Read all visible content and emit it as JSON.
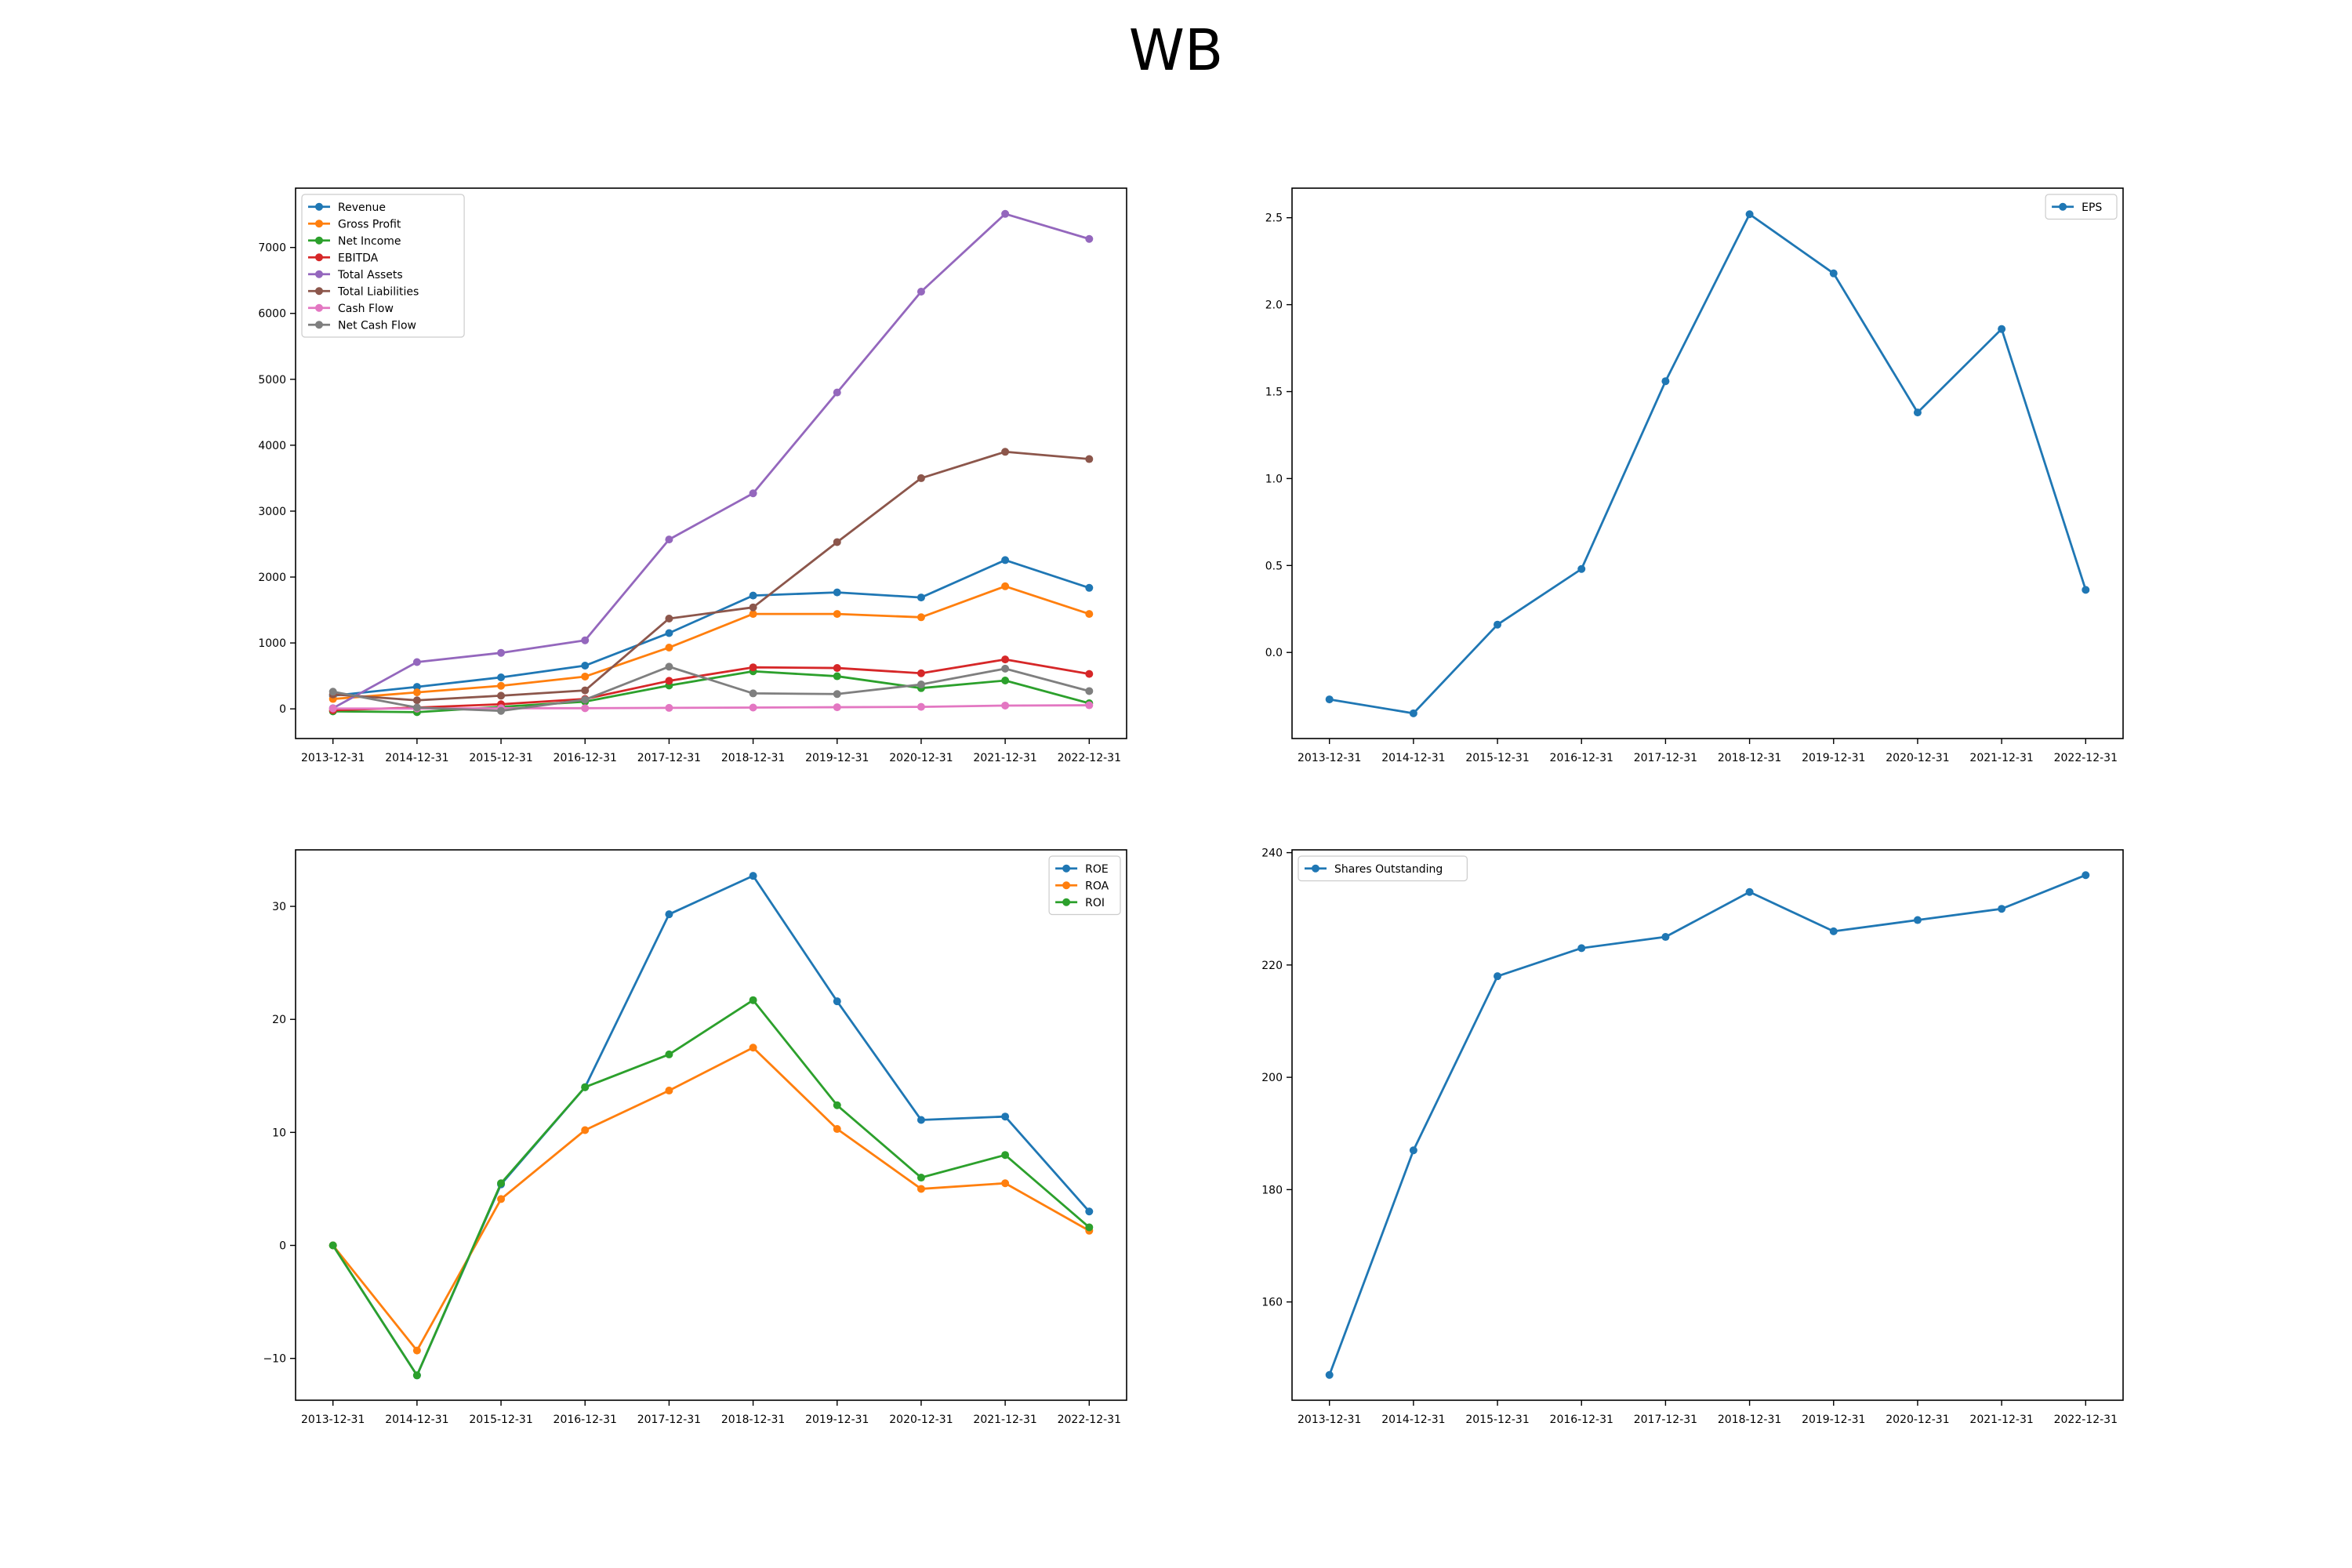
{
  "figure_title": "WB",
  "colors": {
    "blue": "#1f77b4",
    "orange": "#ff7f0e",
    "green": "#2ca02c",
    "red": "#d62728",
    "purple": "#9467bd",
    "brown": "#8c564b",
    "pink": "#e377c2",
    "gray": "#7f7f7f"
  },
  "chart_data": [
    {
      "type": "line",
      "x": [
        "2013-12-31",
        "2014-12-31",
        "2015-12-31",
        "2016-12-31",
        "2017-12-31",
        "2018-12-31",
        "2019-12-31",
        "2020-12-31",
        "2021-12-31",
        "2022-12-31"
      ],
      "ylim": [
        -450,
        7900
      ],
      "yticks": [
        0,
        1000,
        2000,
        3000,
        4000,
        5000,
        6000,
        7000
      ],
      "legend": "top-left",
      "grid": false,
      "series": [
        {
          "name": "Revenue",
          "color": "#1f77b4",
          "values": [
            200,
            334,
            478,
            656,
            1150,
            1719,
            1767,
            1690,
            2257,
            1836
          ]
        },
        {
          "name": "Gross Profit",
          "color": "#ff7f0e",
          "values": [
            150,
            250,
            350,
            490,
            930,
            1440,
            1440,
            1390,
            1860,
            1440
          ]
        },
        {
          "name": "Net Income",
          "color": "#2ca02c",
          "values": [
            -38,
            -50,
            30,
            110,
            355,
            570,
            495,
            315,
            430,
            85
          ]
        },
        {
          "name": "EBITDA",
          "color": "#d62728",
          "values": [
            -20,
            20,
            70,
            150,
            425,
            630,
            620,
            540,
            750,
            530
          ]
        },
        {
          "name": "Total Assets",
          "color": "#9467bd",
          "values": [
            10,
            710,
            850,
            1040,
            2570,
            3270,
            4800,
            6330,
            7510,
            7130
          ]
        },
        {
          "name": "Total Liabilities",
          "color": "#8c564b",
          "values": [
            220,
            130,
            200,
            280,
            1370,
            1540,
            2530,
            3500,
            3900,
            3790
          ]
        },
        {
          "name": "Cash Flow",
          "color": "#e377c2",
          "values": [
            5,
            5,
            10,
            10,
            15,
            20,
            25,
            30,
            50,
            55
          ]
        },
        {
          "name": "Net Cash Flow",
          "color": "#7f7f7f",
          "values": [
            260,
            20,
            -30,
            140,
            640,
            235,
            225,
            370,
            610,
            270
          ]
        }
      ]
    },
    {
      "type": "line",
      "x": [
        "2013-12-31",
        "2014-12-31",
        "2015-12-31",
        "2016-12-31",
        "2017-12-31",
        "2018-12-31",
        "2019-12-31",
        "2020-12-31",
        "2021-12-31",
        "2022-12-31"
      ],
      "ylim": [
        -0.495,
        2.67
      ],
      "yticks": [
        0.0,
        0.5,
        1.0,
        1.5,
        2.0,
        2.5
      ],
      "ytick_labels": [
        "0.0",
        "0.5",
        "1.0",
        "1.5",
        "2.0",
        "2.5"
      ],
      "legend": "top-right",
      "grid": false,
      "series": [
        {
          "name": "EPS",
          "color": "#1f77b4",
          "values": [
            -0.27,
            -0.35,
            0.16,
            0.48,
            1.56,
            2.52,
            2.18,
            1.38,
            1.86,
            0.36
          ]
        }
      ]
    },
    {
      "type": "line",
      "x": [
        "2013-12-31",
        "2014-12-31",
        "2015-12-31",
        "2016-12-31",
        "2017-12-31",
        "2018-12-31",
        "2019-12-31",
        "2020-12-31",
        "2021-12-31",
        "2022-12-31"
      ],
      "ylim": [
        -13.7,
        35
      ],
      "yticks": [
        -10,
        0,
        10,
        20,
        30
      ],
      "legend": "top-right",
      "grid": false,
      "series": [
        {
          "name": "ROE",
          "color": "#1f77b4",
          "values": [
            0,
            -11.5,
            5.4,
            14.0,
            29.3,
            32.7,
            21.6,
            11.1,
            11.4,
            3.0
          ]
        },
        {
          "name": "ROA",
          "color": "#ff7f0e",
          "values": [
            0,
            -9.3,
            4.1,
            10.2,
            13.7,
            17.5,
            10.3,
            5.0,
            5.5,
            1.3
          ]
        },
        {
          "name": "ROI",
          "color": "#2ca02c",
          "values": [
            0,
            -11.5,
            5.5,
            14.0,
            16.9,
            21.7,
            12.4,
            6.0,
            8.0,
            1.6
          ]
        }
      ]
    },
    {
      "type": "line",
      "x": [
        "2013-12-31",
        "2014-12-31",
        "2015-12-31",
        "2016-12-31",
        "2017-12-31",
        "2018-12-31",
        "2019-12-31",
        "2020-12-31",
        "2021-12-31",
        "2022-12-31"
      ],
      "ylim": [
        142.5,
        240.5
      ],
      "yticks": [
        160,
        180,
        200,
        220,
        240
      ],
      "legend": "top-left",
      "grid": false,
      "series": [
        {
          "name": "Shares Outstanding",
          "color": "#1f77b4",
          "values": [
            147,
            187,
            218,
            223,
            225,
            233,
            226,
            228,
            230,
            236
          ]
        }
      ]
    }
  ]
}
